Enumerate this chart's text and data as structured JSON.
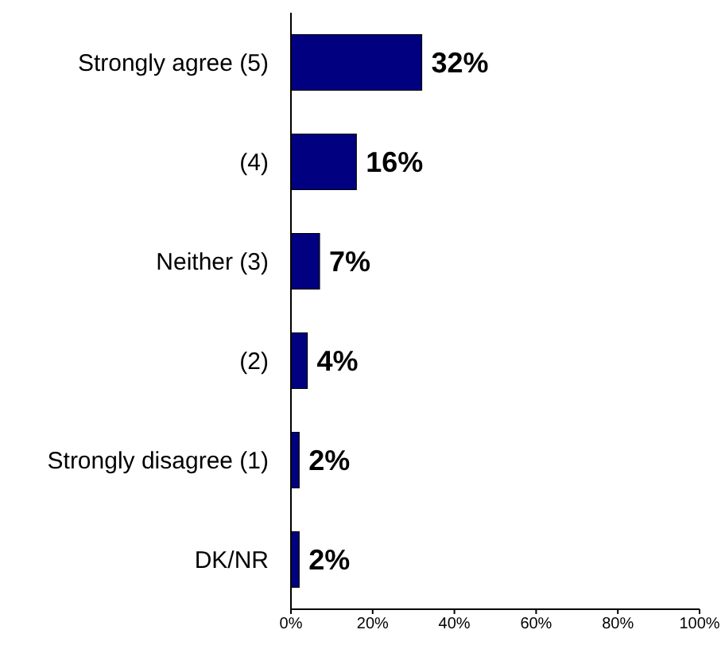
{
  "chart_data": {
    "type": "bar",
    "orientation": "horizontal",
    "categories": [
      "Strongly agree (5)",
      "(4)",
      "Neither (3)",
      "(2)",
      "Strongly disagree (1)",
      "DK/NR"
    ],
    "values": [
      32,
      16,
      7,
      4,
      2,
      2
    ],
    "value_labels": [
      "32%",
      "16%",
      "7%",
      "4%",
      "2%",
      "2%"
    ],
    "color": "#000080",
    "xlim": [
      0,
      100
    ],
    "xticks": [
      {
        "value": 0,
        "label": "0%"
      },
      {
        "value": 20,
        "label": "20%"
      },
      {
        "value": 40,
        "label": "40%"
      },
      {
        "value": 60,
        "label": "60%"
      },
      {
        "value": 80,
        "label": "80%"
      },
      {
        "value": 100,
        "label": "100%"
      }
    ]
  }
}
